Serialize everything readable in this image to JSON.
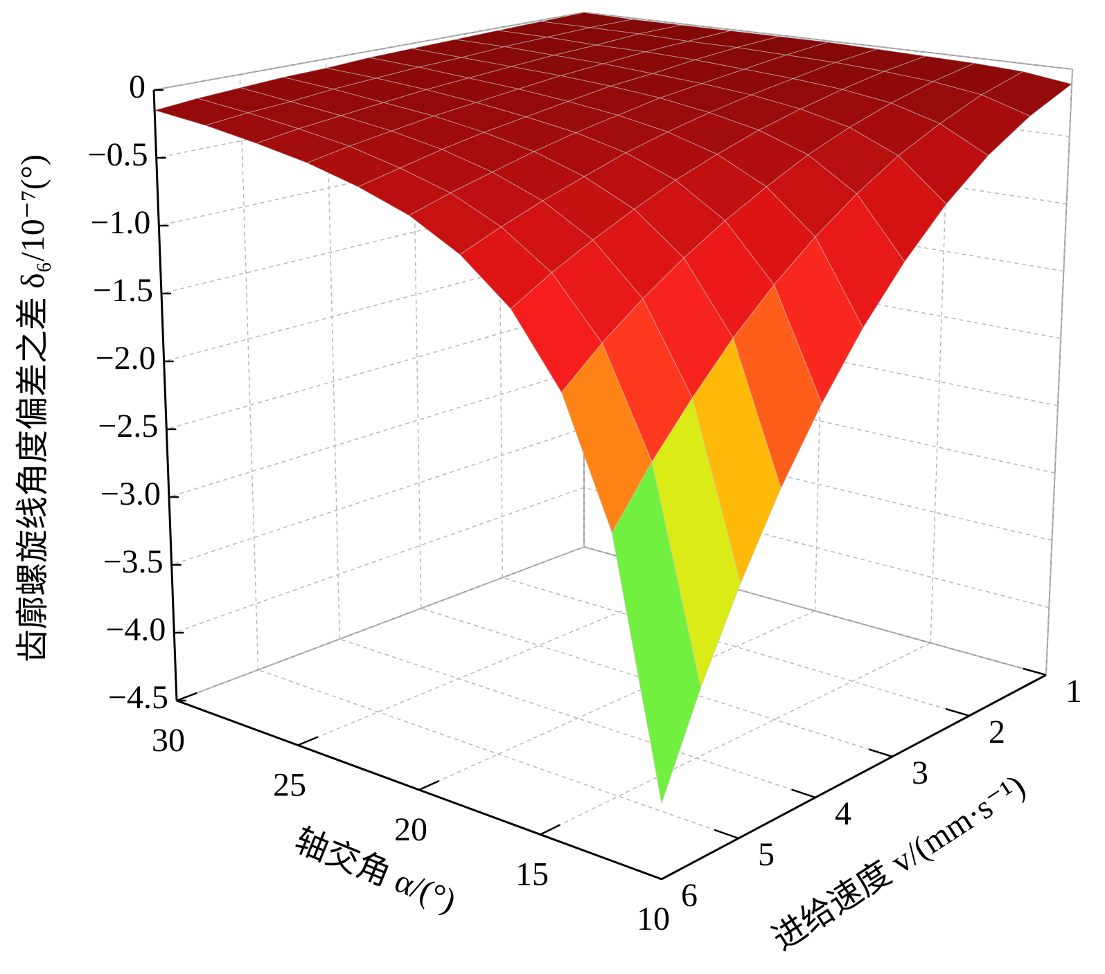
{
  "chart_data": {
    "type": "surface",
    "zlabel": "齿廓螺旋线角度偏差之差 δ₆/10⁻⁷(°)",
    "xlabel": "轴交角 α/(°)",
    "ylabel": "进给速度 v/(mm·s⁻¹)",
    "x": [
      10,
      12,
      14,
      16,
      18,
      20,
      22,
      24,
      26,
      28,
      30
    ],
    "y": [
      1,
      1.5,
      2,
      2.5,
      3,
      3.5,
      4,
      4.5,
      5,
      5.5,
      6
    ],
    "z": [
      [
        -0.11,
        -0.25,
        -0.44,
        -0.69,
        -1.0,
        -1.36,
        -1.78,
        -2.25,
        -2.78,
        -3.36,
        -4.0
      ],
      [
        -0.06,
        -0.14,
        -0.26,
        -0.4,
        -0.58,
        -0.79,
        -1.03,
        -1.3,
        -1.61,
        -1.94,
        -2.31
      ],
      [
        -0.04,
        -0.09,
        -0.16,
        -0.25,
        -0.36,
        -0.5,
        -0.65,
        -0.82,
        -1.01,
        -1.22,
        -1.46
      ],
      [
        -0.03,
        -0.06,
        -0.11,
        -0.17,
        -0.24,
        -0.33,
        -0.43,
        -0.55,
        -0.68,
        -0.82,
        -0.98
      ],
      [
        -0.02,
        -0.04,
        -0.08,
        -0.12,
        -0.17,
        -0.23,
        -0.3,
        -0.39,
        -0.48,
        -0.58,
        -0.69
      ],
      [
        -0.01,
        -0.03,
        -0.06,
        -0.09,
        -0.12,
        -0.17,
        -0.22,
        -0.28,
        -0.35,
        -0.42,
        -0.5
      ],
      [
        -0.01,
        -0.02,
        -0.04,
        -0.07,
        -0.09,
        -0.13,
        -0.17,
        -0.21,
        -0.26,
        -0.32,
        -0.38
      ],
      [
        -0.01,
        -0.02,
        -0.03,
        -0.05,
        -0.07,
        -0.1,
        -0.13,
        -0.16,
        -0.2,
        -0.24,
        -0.29
      ],
      [
        -0.01,
        -0.01,
        -0.03,
        -0.04,
        -0.06,
        -0.08,
        -0.1,
        -0.13,
        -0.16,
        -0.19,
        -0.23
      ],
      [
        -0.01,
        -0.01,
        -0.02,
        -0.03,
        -0.05,
        -0.06,
        -0.08,
        -0.1,
        -0.13,
        -0.15,
        -0.18
      ],
      [
        0,
        -0.01,
        -0.02,
        -0.03,
        -0.04,
        -0.05,
        -0.07,
        -0.08,
        -0.1,
        -0.12,
        -0.15
      ]
    ],
    "xlim": [
      10,
      30
    ],
    "xticks": [
      30,
      25,
      20,
      15,
      10
    ],
    "ylim": [
      1,
      6
    ],
    "yticks": [
      1,
      2,
      3,
      4,
      5,
      6
    ],
    "zlim": [
      -4.5,
      0
    ],
    "zticks": [
      0,
      {
        "value": -0.5,
        "label": "−0.5"
      },
      {
        "value": -1.0,
        "label": "−1.0"
      },
      {
        "value": -1.5,
        "label": "−1.5"
      },
      {
        "value": -2.0,
        "label": "−2.0"
      },
      {
        "value": -2.5,
        "label": "−2.5"
      },
      {
        "value": -3.0,
        "label": "−3.0"
      },
      {
        "value": -3.5,
        "label": "−3.5"
      },
      {
        "value": -4.0,
        "label": "−4.0"
      },
      {
        "value": -4.5,
        "label": "−4.5"
      }
    ],
    "grid": true,
    "colormap": [
      "#7a3cf0",
      "#3a6cff",
      "#40d8ff",
      "#70f040",
      "#c8f020",
      "#ffe000",
      "#ff9a10",
      "#ff3a20",
      "#f41c1c",
      "#dc1414",
      "#b40e0e",
      "#820808"
    ]
  }
}
